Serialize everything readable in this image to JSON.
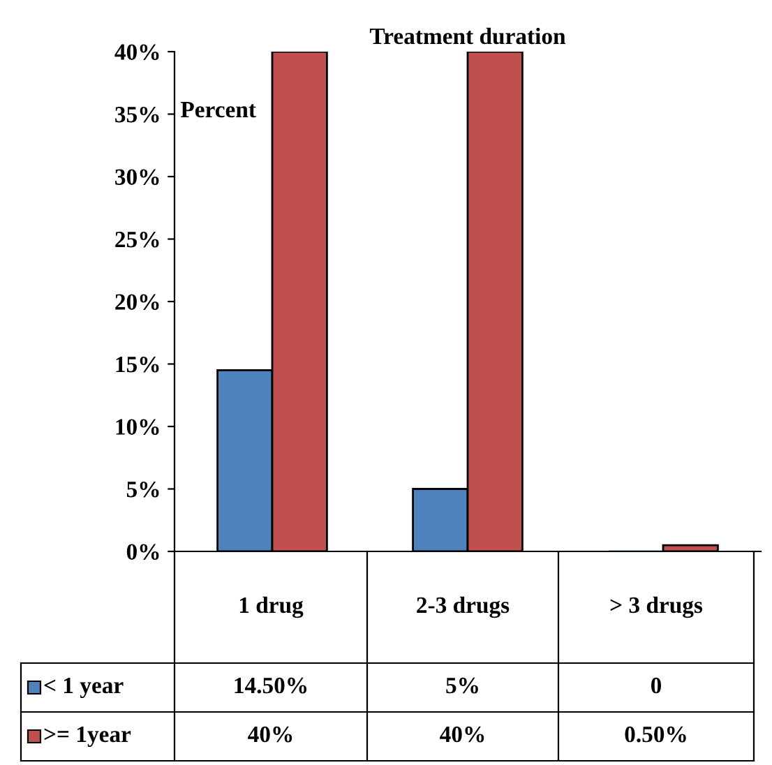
{
  "chart_data": {
    "type": "bar",
    "title": "Treatment duration",
    "ylabel": "Percent",
    "categories": [
      "1 drug",
      "2-3 drugs",
      "> 3 drugs"
    ],
    "series": [
      {
        "name": "< 1 year",
        "color": "#4f81bd",
        "values": [
          14.5,
          5,
          0
        ],
        "value_labels": [
          "14.50%",
          "5%",
          "0"
        ]
      },
      {
        "name": ">= 1year",
        "color": "#c0504d",
        "values": [
          40,
          40,
          0.5
        ],
        "value_labels": [
          "40%",
          "40%",
          "0.50%"
        ]
      }
    ],
    "ylim": [
      0,
      40
    ],
    "yticks": [
      {
        "value": 0,
        "label": "0%"
      },
      {
        "value": 5,
        "label": "5%"
      },
      {
        "value": 10,
        "label": "10%"
      },
      {
        "value": 15,
        "label": "15%"
      },
      {
        "value": 20,
        "label": "20%"
      },
      {
        "value": 25,
        "label": "25%"
      },
      {
        "value": 30,
        "label": "30%"
      },
      {
        "value": 35,
        "label": "35%"
      },
      {
        "value": 40,
        "label": "40%"
      }
    ],
    "grid": false,
    "legend": "bottom",
    "tick_labels": "y"
  }
}
